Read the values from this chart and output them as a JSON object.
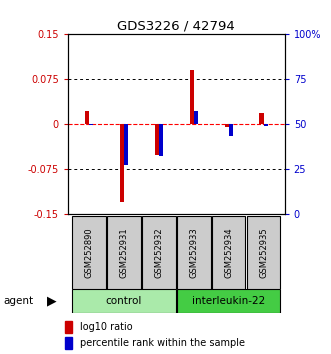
{
  "title": "GDS3226 / 42794",
  "samples": [
    "GSM252890",
    "GSM252931",
    "GSM252932",
    "GSM252933",
    "GSM252934",
    "GSM252935"
  ],
  "log10_ratio": [
    0.022,
    -0.13,
    -0.052,
    0.09,
    -0.005,
    0.018
  ],
  "percentile_rank": [
    49.5,
    27.0,
    32.0,
    57.0,
    43.5,
    49.0
  ],
  "ylim_left": [
    -0.15,
    0.15
  ],
  "ylim_right": [
    0,
    100
  ],
  "yticks_left": [
    -0.15,
    -0.075,
    0,
    0.075,
    0.15
  ],
  "ytick_labels_left": [
    "-0.15",
    "-0.075",
    "0",
    "0.075",
    "0.15"
  ],
  "yticks_right": [
    0,
    25,
    50,
    75,
    100
  ],
  "ytick_labels_right": [
    "0",
    "25",
    "50",
    "75",
    "100%"
  ],
  "bar_width": 0.12,
  "red_color": "#CC0000",
  "blue_color": "#0000CC",
  "zero_line_color": "#FF0000",
  "control_color": "#AAEAAA",
  "interleukin_color": "#44CC44",
  "sample_box_color": "#CCCCCC"
}
